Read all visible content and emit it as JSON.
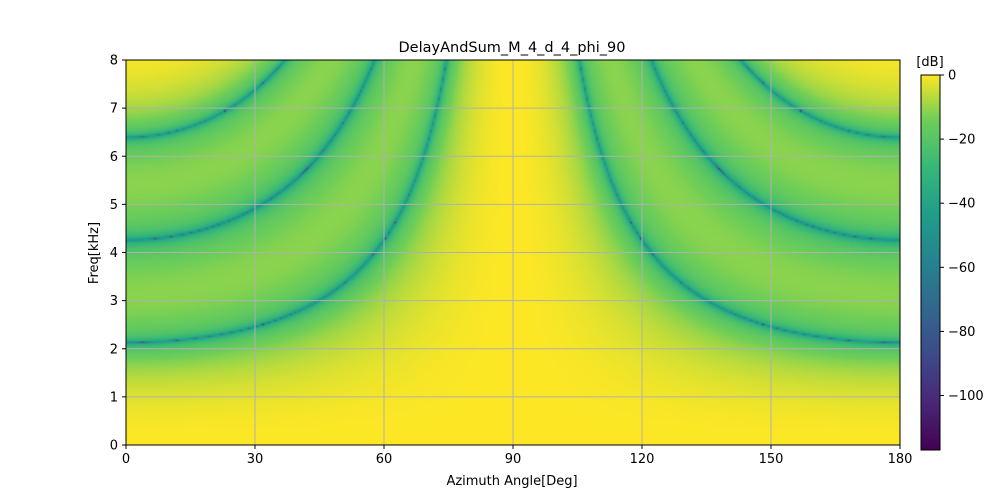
{
  "chart_data": {
    "type": "heatmap",
    "title": "DelayAndSum_M_4_d_4_phi_90",
    "xlabel": "Azimuth Angle[Deg]",
    "ylabel": "Freq[kHz]",
    "xlim": [
      0,
      180
    ],
    "ylim": [
      0,
      8
    ],
    "xticks": [
      "0",
      "30",
      "60",
      "90",
      "120",
      "150",
      "180"
    ],
    "yticks": [
      "0",
      "1",
      "2",
      "3",
      "4",
      "5",
      "6",
      "7",
      "8"
    ],
    "grid": true,
    "colormap": "viridis",
    "colorbar": {
      "label": "[dB]",
      "range": [
        -117,
        0
      ],
      "ticks": [
        "0",
        "−20",
        "−40",
        "−60",
        "−80",
        "−100"
      ]
    },
    "null_curves_kHz_at_0_deg": [
      2.13,
      4.26,
      6.39
    ],
    "description": "Beam pattern: high response (0 dB) near broadside 90 deg; deep null ridges curving upward toward 90 deg."
  }
}
